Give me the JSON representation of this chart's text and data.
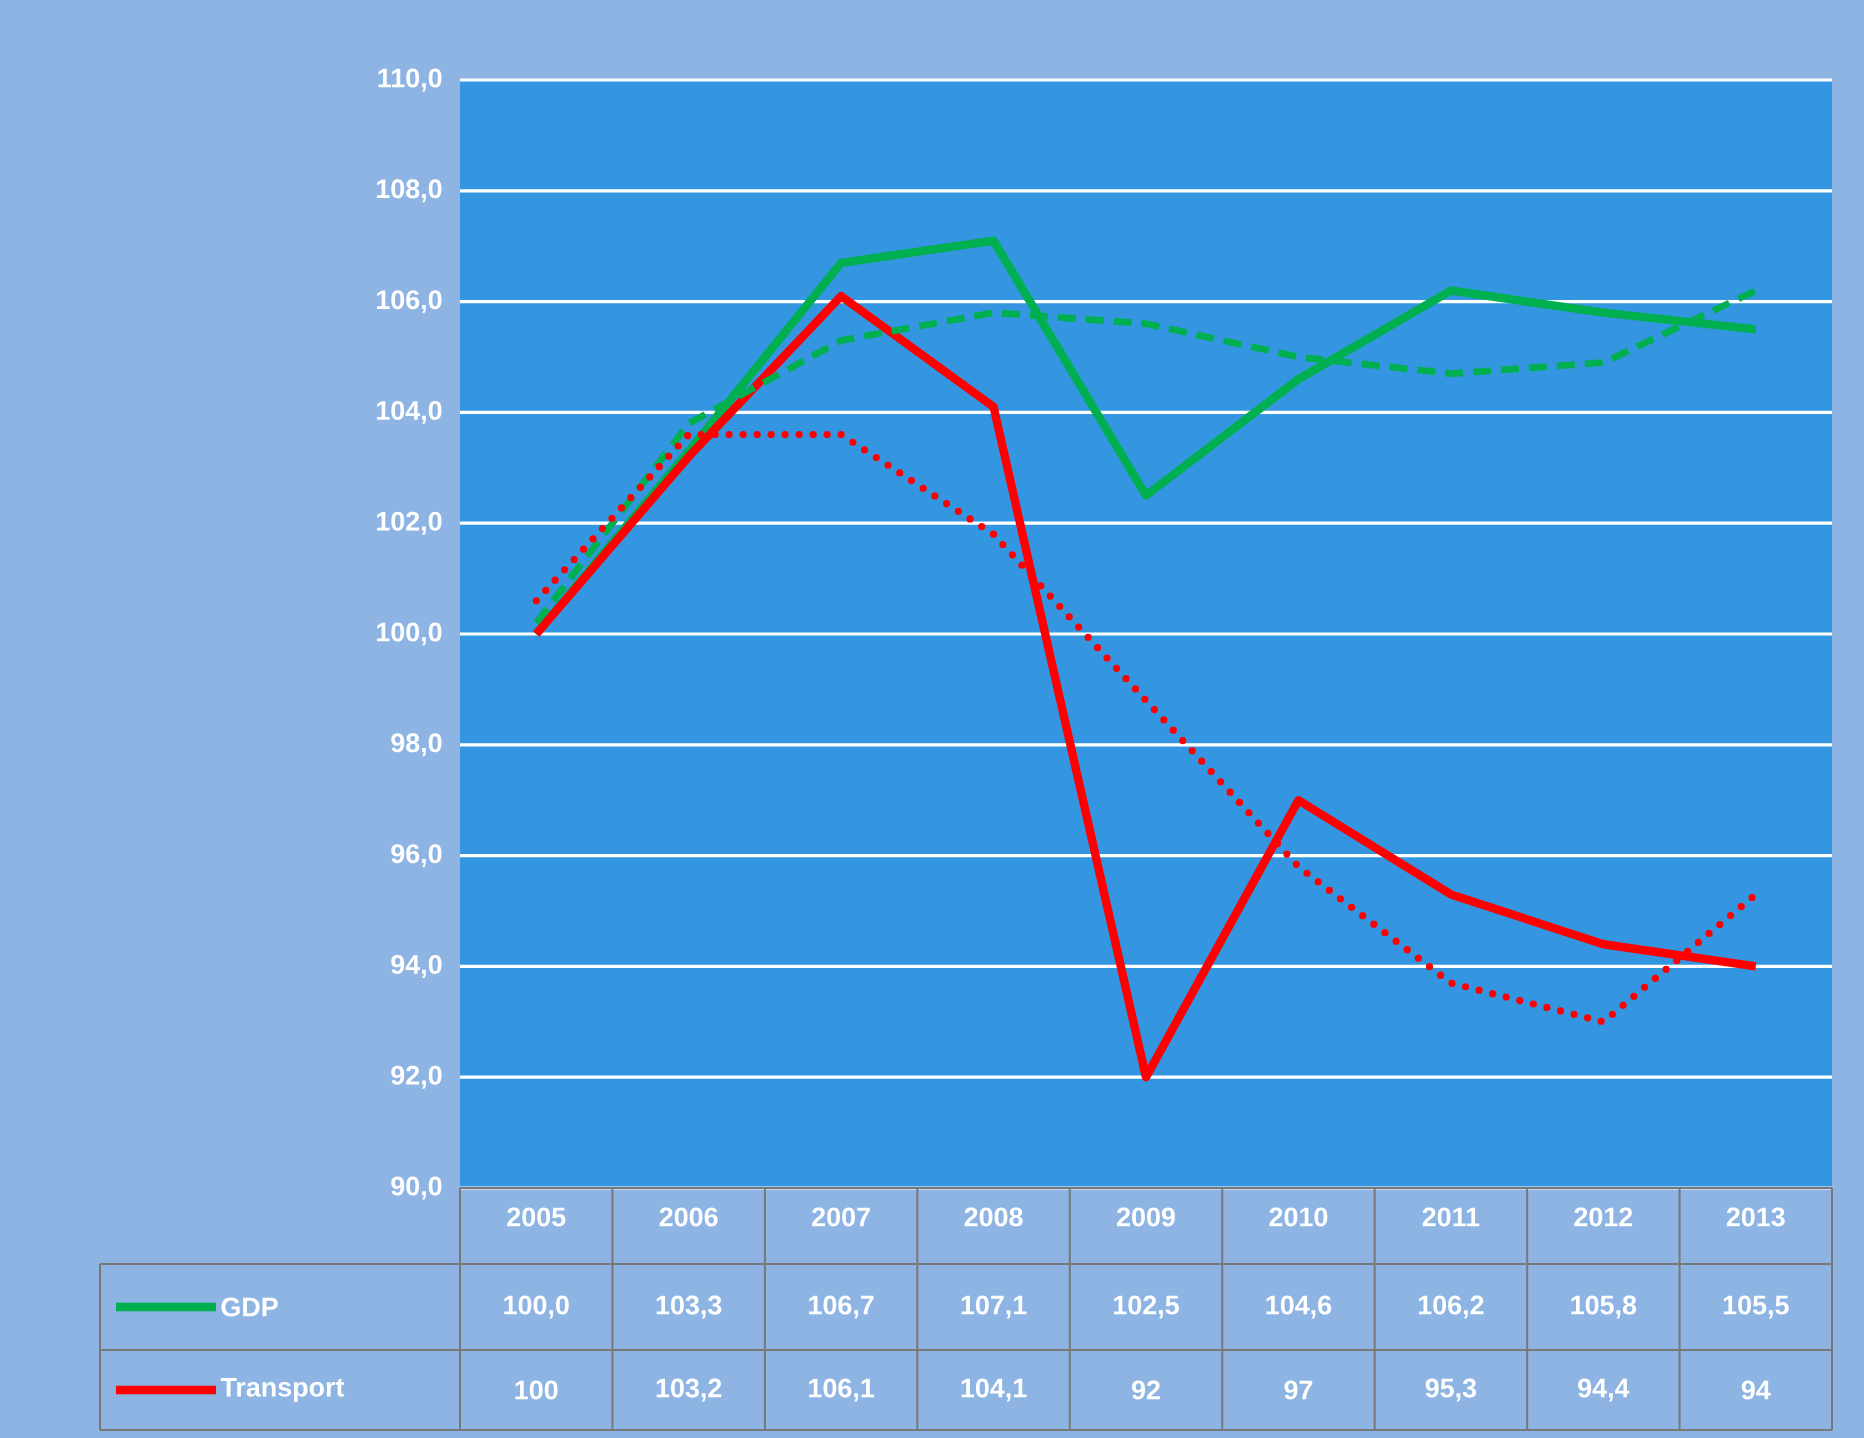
{
  "chart_data": {
    "type": "line",
    "categories": [
      "2005",
      "2006",
      "2007",
      "2008",
      "2009",
      "2010",
      "2011",
      "2012",
      "2013"
    ],
    "series": [
      {
        "name": "GDP",
        "color": "#00b050",
        "line_style": "solid",
        "values": [
          100.0,
          103.3,
          106.7,
          107.1,
          102.5,
          104.6,
          106.2,
          105.8,
          105.5
        ],
        "value_labels": [
          "100,0",
          "103,3",
          "106,7",
          "107,1",
          "102,5",
          "104,6",
          "106,2",
          "105,8",
          "105,5"
        ]
      },
      {
        "name": "Transport",
        "color": "#ff0000",
        "line_style": "solid",
        "values": [
          100,
          103.2,
          106.1,
          104.1,
          92,
          97,
          95.3,
          94.4,
          94
        ],
        "value_labels": [
          "100",
          "103,2",
          "106,1",
          "104,1",
          "92",
          "97",
          "95,3",
          "94,4",
          "94"
        ]
      },
      {
        "color": "#00b050",
        "line_style": "dashed",
        "values": [
          100.2,
          103.8,
          105.3,
          105.8,
          105.6,
          105.0,
          104.7,
          104.9,
          106.2
        ]
      },
      {
        "color": "#ff0000",
        "line_style": "dotted",
        "values": [
          100.6,
          103.6,
          103.6,
          101.8,
          98.8,
          95.8,
          93.7,
          93.0,
          95.3
        ]
      }
    ],
    "ylim": [
      90,
      110
    ],
    "yticks": [
      {
        "value": 90,
        "label": "90,0"
      },
      {
        "value": 92,
        "label": "92,0"
      },
      {
        "value": 94,
        "label": "94,0"
      },
      {
        "value": 96,
        "label": "96,0"
      },
      {
        "value": 98,
        "label": "98,0"
      },
      {
        "value": 100,
        "label": "100,0"
      },
      {
        "value": 102,
        "label": "102,0"
      },
      {
        "value": 104,
        "label": "104,0"
      },
      {
        "value": 106,
        "label": "106,0"
      },
      {
        "value": 108,
        "label": "108,0"
      },
      {
        "value": 110,
        "label": "110,0"
      }
    ],
    "grid": "y",
    "legend": "bottom"
  }
}
